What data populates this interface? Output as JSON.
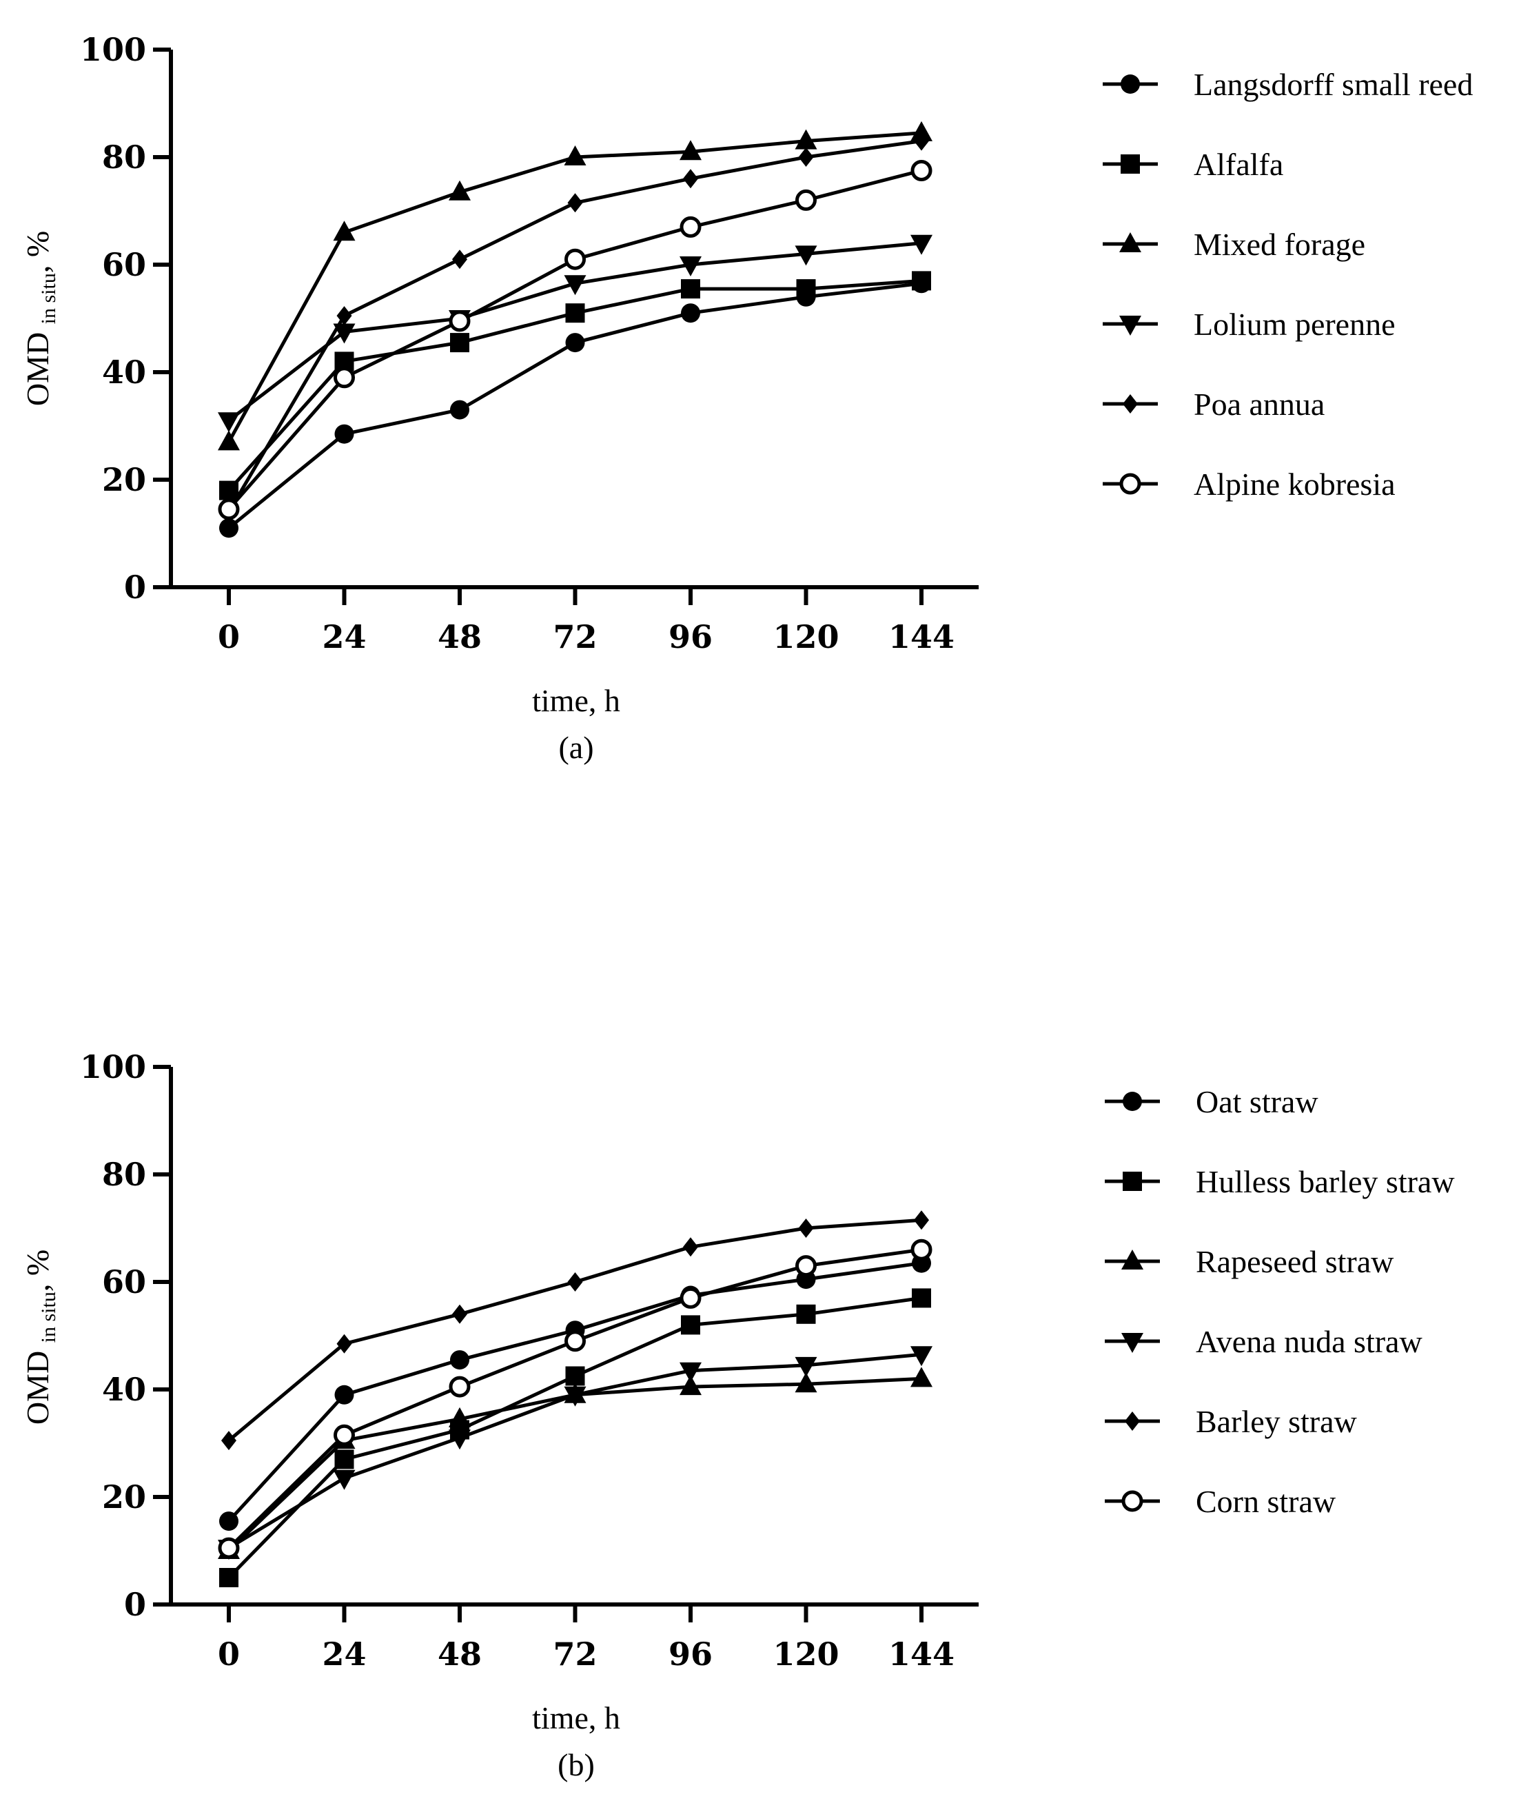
{
  "chart_data": [
    {
      "type": "line",
      "caption": "(a)",
      "xlabel": "time, h",
      "ylabel": {
        "main": "OMD",
        "sub": "in situ",
        "suffix": ", %"
      },
      "x": [
        0,
        24,
        48,
        72,
        96,
        120,
        144
      ],
      "xticks": [
        "0",
        "24",
        "48",
        "72",
        "96",
        "120",
        "144"
      ],
      "ylim": [
        0,
        100
      ],
      "yticks": [
        "0",
        "20",
        "40",
        "60",
        "80",
        "100"
      ],
      "legend_position": "right",
      "series": [
        {
          "name": "Langsdorff small reed",
          "marker": "circle",
          "values": [
            11.0,
            28.5,
            33.0,
            45.5,
            51.0,
            54.0,
            56.5
          ]
        },
        {
          "name": "Alfalfa",
          "marker": "square",
          "values": [
            18.0,
            42.0,
            45.5,
            51.0,
            55.5,
            55.5,
            57.0
          ]
        },
        {
          "name": "Mixed forage",
          "marker": "triangle-up",
          "values": [
            27.0,
            66.0,
            73.5,
            80.0,
            81.0,
            83.0,
            84.5
          ]
        },
        {
          "name": "Lolium perenne",
          "marker": "triangle-down",
          "values": [
            31.0,
            47.5,
            50.0,
            56.5,
            60.0,
            62.0,
            64.0
          ]
        },
        {
          "name": "Poa annua",
          "marker": "diamond",
          "values": [
            14.0,
            50.5,
            61.0,
            71.5,
            76.0,
            80.0,
            83.0
          ]
        },
        {
          "name": "Alpine kobresia",
          "marker": "open-circle",
          "values": [
            14.5,
            39.0,
            49.5,
            61.0,
            67.0,
            72.0,
            77.5
          ]
        }
      ]
    },
    {
      "type": "line",
      "caption": "(b)",
      "xlabel": "time, h",
      "ylabel": {
        "main": "OMD",
        "sub": "in situ",
        "suffix": ", %"
      },
      "x": [
        0,
        24,
        48,
        72,
        96,
        120,
        144
      ],
      "xticks": [
        "0",
        "24",
        "48",
        "72",
        "96",
        "120",
        "144"
      ],
      "ylim": [
        0,
        100
      ],
      "yticks": [
        "0",
        "20",
        "40",
        "60",
        "80",
        "100"
      ],
      "legend_position": "right",
      "series": [
        {
          "name": "Oat straw",
          "marker": "circle",
          "values": [
            15.5,
            39.0,
            45.5,
            51.0,
            57.5,
            60.5,
            63.5
          ]
        },
        {
          "name": "Hulless barley straw",
          "marker": "square",
          "values": [
            5.0,
            27.0,
            32.5,
            42.5,
            52.0,
            54.0,
            57.0
          ]
        },
        {
          "name": "Rapeseed straw",
          "marker": "triangle-up",
          "values": [
            10.0,
            30.5,
            34.5,
            39.0,
            40.5,
            41.0,
            42.0
          ]
        },
        {
          "name": "Avena nuda straw",
          "marker": "triangle-down",
          "values": [
            10.5,
            23.5,
            31.0,
            39.0,
            43.5,
            44.5,
            46.5
          ]
        },
        {
          "name": "Barley straw",
          "marker": "diamond",
          "values": [
            30.5,
            48.5,
            54.0,
            60.0,
            66.5,
            70.0,
            71.5
          ]
        },
        {
          "name": "Corn straw",
          "marker": "open-circle",
          "values": [
            10.5,
            31.5,
            40.5,
            49.0,
            57.0,
            63.0,
            66.0
          ]
        }
      ]
    }
  ]
}
